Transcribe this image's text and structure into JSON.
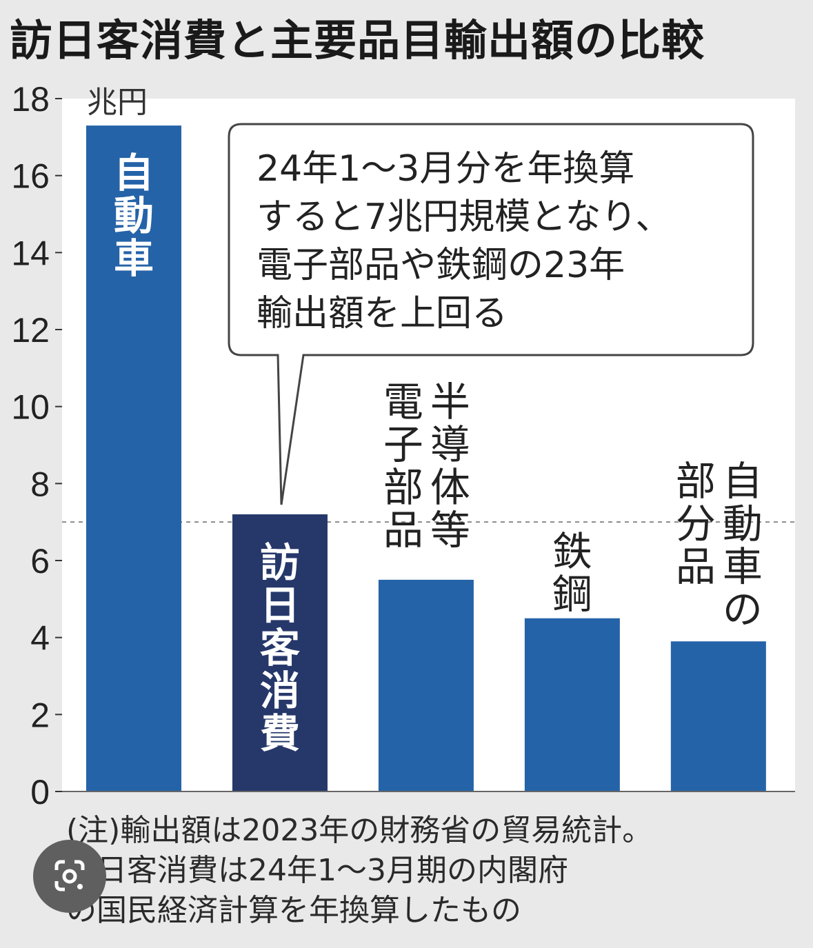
{
  "title": "訪日客消費と主要品目輸出額の比較",
  "chart_data": {
    "type": "bar",
    "unit": "兆円",
    "ylim": [
      0,
      18
    ],
    "yticks": [
      0,
      2,
      4,
      6,
      8,
      10,
      12,
      14,
      16,
      18
    ],
    "reference_line": 7,
    "categories": [
      "自動車",
      "訪日客消費",
      "半導体等電子部品",
      "鉄鋼",
      "自動車の部分品"
    ],
    "values": [
      17.3,
      7.2,
      5.5,
      4.5,
      3.9
    ],
    "bar_colors": [
      "#2563a8",
      "#26386a",
      "#2563a8",
      "#2563a8",
      "#2563a8"
    ],
    "label_columns": [
      [
        "自動車"
      ],
      [
        "訪日客消費"
      ],
      [
        "電子部品",
        "半導体等"
      ],
      [
        "鉄鋼"
      ],
      [
        "部分品",
        "自動車の"
      ]
    ],
    "callout_lines": [
      "24年1～3月分を年換算",
      "すると7兆円規模となり、",
      "電子部品や鉄鋼の23年",
      "輸出額を上回る"
    ]
  },
  "notes": [
    "(注)輸出額は2023年の財務省の貿易統計。",
    "訪日客消費は24年1～3月期の内閣府",
    "の国民経済計算を年換算したもの"
  ],
  "lens_icon": "google-lens-icon"
}
